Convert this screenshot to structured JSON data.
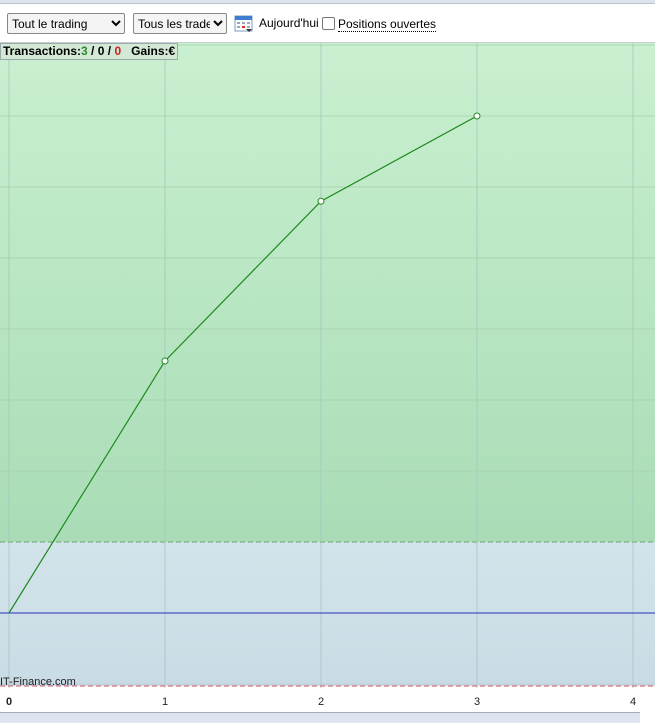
{
  "toolbar": {
    "scope_select": "Tout le trading",
    "trades_select": "Tous les trades",
    "today_label": "Aujourd'hui",
    "open_positions_label": "Positions ouvertes",
    "open_positions_checked": false
  },
  "stats": {
    "label": "Transactions:",
    "wins": "3",
    "sep1": " / ",
    "neutral": "0",
    "sep2": " / ",
    "losses": "0",
    "gains_label": "Gains:",
    "gains_value": "€"
  },
  "watermark": "IT-Finance.com",
  "colors": {
    "line": "#1e8a1e",
    "zero_line": "#2233bb",
    "win_color": "#2a8a2a",
    "loss_color": "#cc2222"
  },
  "chart_data": {
    "type": "line",
    "x": [
      0,
      1,
      2,
      3
    ],
    "y": [
      0,
      3.55,
      5.8,
      7.0
    ],
    "xlim": [
      0,
      4.1
    ],
    "x_ticks": [
      "0",
      "1",
      "2",
      "3",
      "4"
    ],
    "grid": true,
    "markers": "open-circle"
  }
}
